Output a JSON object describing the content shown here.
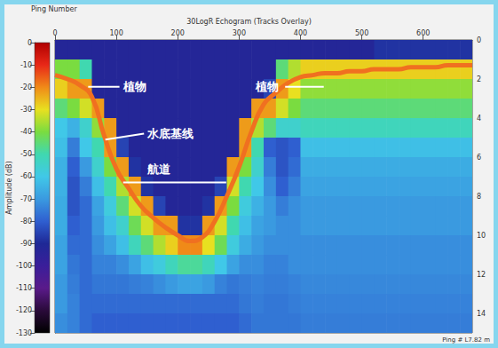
{
  "chart_data": {
    "type": "heatmap",
    "title": "30LogR Echogram (Tracks Overlay)",
    "xlabel": "Ping Number",
    "footer": "Ping # L7.82 m",
    "xlim": [
      0,
      680
    ],
    "xticks": [
      0,
      100,
      200,
      300,
      400,
      500,
      600
    ],
    "ylim": [
      15,
      0
    ],
    "yticks": [
      0,
      2,
      4,
      6,
      8,
      10,
      12,
      14
    ],
    "grid": false,
    "colorbar": {
      "label": "Amplitude (dB)",
      "lim": [
        -130,
        0
      ],
      "ticks": [
        -130,
        -120,
        -110,
        -100,
        -90,
        -80,
        -70,
        -60,
        -50,
        -40,
        -30,
        -20,
        -10,
        0
      ],
      "colors": [
        "#000000",
        "#2a0a3a",
        "#5a1a8a",
        "#3a1e9a",
        "#1e2896",
        "#2f5fd0",
        "#3a9ae0",
        "#40c8e8",
        "#40d8b0",
        "#7adc40",
        "#e8e020",
        "#f08a18",
        "#e82818",
        "#b00000"
      ]
    },
    "cells": {
      "x": [
        0,
        20,
        40,
        60,
        80,
        100,
        120,
        140,
        160,
        180,
        200,
        220,
        240,
        260,
        280,
        300,
        320,
        340,
        360,
        380,
        400,
        420,
        440,
        460,
        480,
        500,
        520,
        540,
        560,
        580,
        600,
        620,
        640,
        660,
        680
      ],
      "y": [
        0,
        1,
        2,
        3,
        4,
        5,
        6,
        7,
        8,
        9,
        10,
        11,
        12,
        13,
        14,
        15
      ],
      "values": [
        [
          -92,
          -92,
          -92,
          -92,
          -92,
          -92,
          -92,
          -92,
          -92,
          -92,
          -92,
          -92,
          -92,
          -92,
          -92,
          -92,
          -92,
          -92,
          -92,
          -92,
          -92,
          -92,
          -92,
          -92,
          -92,
          -92,
          -88,
          -88,
          -88,
          -88,
          -88,
          -88,
          -88,
          -88
        ],
        [
          -40,
          -40,
          -50,
          -92,
          -92,
          -92,
          -92,
          -92,
          -92,
          -92,
          -92,
          -92,
          -92,
          -92,
          -92,
          -92,
          -92,
          -92,
          -45,
          -35,
          -28,
          -28,
          -28,
          -28,
          -28,
          -28,
          -28,
          -28,
          -28,
          -28,
          -28,
          -28,
          -28,
          -28
        ],
        [
          -28,
          -22,
          -22,
          -92,
          -92,
          -92,
          -92,
          -92,
          -92,
          -92,
          -92,
          -92,
          -92,
          -92,
          -92,
          -92,
          -92,
          -85,
          -22,
          -30,
          -38,
          -38,
          -38,
          -38,
          -38,
          -38,
          -38,
          -38,
          -38,
          -38,
          -38,
          -38,
          -38,
          -38
        ],
        [
          -45,
          -40,
          -32,
          -22,
          -92,
          -92,
          -92,
          -92,
          -92,
          -92,
          -92,
          -92,
          -92,
          -92,
          -92,
          -92,
          -22,
          -22,
          -32,
          -40,
          -45,
          -45,
          -45,
          -45,
          -45,
          -45,
          -45,
          -45,
          -45,
          -45,
          -45,
          -45,
          -45,
          -45
        ],
        [
          -60,
          -65,
          -55,
          -38,
          -22,
          -92,
          -92,
          -92,
          -92,
          -92,
          -92,
          -92,
          -92,
          -92,
          -92,
          -22,
          -35,
          -45,
          -55,
          -55,
          -52,
          -52,
          -52,
          -52,
          -52,
          -52,
          -52,
          -52,
          -52,
          -52,
          -52,
          -52,
          -52,
          -52
        ],
        [
          -62,
          -75,
          -60,
          -50,
          -22,
          -85,
          -92,
          -92,
          -92,
          -92,
          -92,
          -92,
          -92,
          -92,
          -92,
          -22,
          -50,
          -80,
          -82,
          -80,
          -62,
          -62,
          -62,
          -62,
          -62,
          -62,
          -62,
          -62,
          -62,
          -62,
          -62,
          -62,
          -62,
          -62
        ],
        [
          -65,
          -80,
          -70,
          -55,
          -40,
          -22,
          -88,
          -92,
          -92,
          -92,
          -92,
          -92,
          -92,
          -92,
          -22,
          -40,
          -55,
          -75,
          -82,
          -78,
          -66,
          -66,
          -66,
          -66,
          -66,
          -66,
          -66,
          -66,
          -66,
          -66,
          -66,
          -66,
          -66,
          -66
        ],
        [
          -65,
          -82,
          -75,
          -62,
          -50,
          -35,
          -22,
          -88,
          -92,
          -92,
          -92,
          -92,
          -92,
          -85,
          -32,
          -50,
          -60,
          -72,
          -80,
          -75,
          -68,
          -68,
          -68,
          -68,
          -68,
          -68,
          -68,
          -68,
          -68,
          -68,
          -68,
          -68,
          -68,
          -68
        ],
        [
          -66,
          -82,
          -78,
          -68,
          -58,
          -45,
          -32,
          -22,
          -85,
          -92,
          -92,
          -92,
          -88,
          -22,
          -40,
          -58,
          -65,
          -70,
          -75,
          -72,
          -70,
          -70,
          -70,
          -70,
          -70,
          -70,
          -70,
          -70,
          -70,
          -70,
          -70,
          -70,
          -70,
          -70
        ],
        [
          -66,
          -80,
          -78,
          -70,
          -62,
          -55,
          -42,
          -32,
          -22,
          -22,
          -88,
          -88,
          -22,
          -32,
          -50,
          -62,
          -68,
          -70,
          -72,
          -72,
          -70,
          -70,
          -70,
          -70,
          -70,
          -70,
          -70,
          -70,
          -70,
          -70,
          -70,
          -70,
          -70,
          -70
        ],
        [
          -68,
          -78,
          -78,
          -72,
          -68,
          -62,
          -52,
          -45,
          -35,
          -28,
          -20,
          -20,
          -30,
          -42,
          -58,
          -66,
          -70,
          -72,
          -72,
          -72,
          -72,
          -72,
          -72,
          -72,
          -72,
          -72,
          -72,
          -72,
          -72,
          -72,
          -72,
          -72,
          -72,
          -72
        ],
        [
          -68,
          -76,
          -78,
          -74,
          -74,
          -72,
          -68,
          -62,
          -58,
          -52,
          -48,
          -48,
          -52,
          -60,
          -68,
          -72,
          -72,
          -74,
          -74,
          -72,
          -72,
          -72,
          -72,
          -72,
          -72,
          -72,
          -72,
          -72,
          -72,
          -72,
          -72,
          -72,
          -72,
          -72
        ],
        [
          -70,
          -75,
          -78,
          -76,
          -76,
          -76,
          -75,
          -74,
          -72,
          -70,
          -68,
          -68,
          -70,
          -74,
          -76,
          -75,
          -74,
          -75,
          -75,
          -74,
          -73,
          -73,
          -73,
          -73,
          -73,
          -73,
          -73,
          -73,
          -73,
          -73,
          -73,
          -73,
          -73,
          -73
        ],
        [
          -70,
          -74,
          -78,
          -78,
          -78,
          -78,
          -78,
          -78,
          -78,
          -78,
          -78,
          -78,
          -78,
          -78,
          -78,
          -76,
          -75,
          -76,
          -76,
          -75,
          -74,
          -74,
          -74,
          -74,
          -74,
          -74,
          -74,
          -74,
          -74,
          -74,
          -74,
          -74,
          -74,
          -74
        ],
        [
          -72,
          -74,
          -78,
          -80,
          -80,
          -80,
          -80,
          -80,
          -80,
          -80,
          -80,
          -80,
          -80,
          -80,
          -80,
          -78,
          -76,
          -76,
          -76,
          -76,
          -75,
          -75,
          -75,
          -75,
          -75,
          -75,
          -75,
          -75,
          -75,
          -75,
          -75,
          -75,
          -75,
          -75
        ]
      ]
    },
    "bottom": {
      "x": [
        0,
        20,
        40,
        60,
        80,
        100,
        120,
        140,
        160,
        180,
        200,
        220,
        240,
        260,
        280,
        300,
        320,
        340,
        360,
        380,
        400,
        420,
        440,
        460,
        480,
        500,
        520,
        540,
        560,
        580,
        600,
        620,
        640,
        660,
        680
      ],
      "values": [
        1.8,
        2.0,
        2.3,
        2.9,
        4.9,
        6.6,
        7.6,
        8.5,
        9.1,
        9.6,
        10.0,
        10.3,
        10.1,
        9.3,
        8.0,
        6.5,
        4.7,
        3.3,
        2.7,
        2.2,
        1.9,
        1.8,
        1.7,
        1.7,
        1.6,
        1.6,
        1.5,
        1.5,
        1.5,
        1.4,
        1.4,
        1.4,
        1.3,
        1.3,
        1.3
      ],
      "color": "#f07020"
    },
    "annotations": [
      {
        "text": "植物",
        "x": 111,
        "y": 2.4,
        "line": [
          [
            54,
            2.4
          ],
          [
            105,
            2.4
          ]
        ]
      },
      {
        "text": "植物",
        "x": 327,
        "y": 2.4,
        "line": [
          [
            375,
            2.4
          ],
          [
            438,
            2.4
          ]
        ]
      },
      {
        "text": "水底基线",
        "x": 151,
        "y": 4.8,
        "line": [
          [
            82,
            5.1
          ],
          [
            145,
            4.8
          ]
        ]
      },
      {
        "text": "航道",
        "x": 151,
        "y": 6.6,
        "line": [
          [
            111,
            7.3
          ],
          [
            279,
            7.3
          ]
        ]
      }
    ]
  }
}
